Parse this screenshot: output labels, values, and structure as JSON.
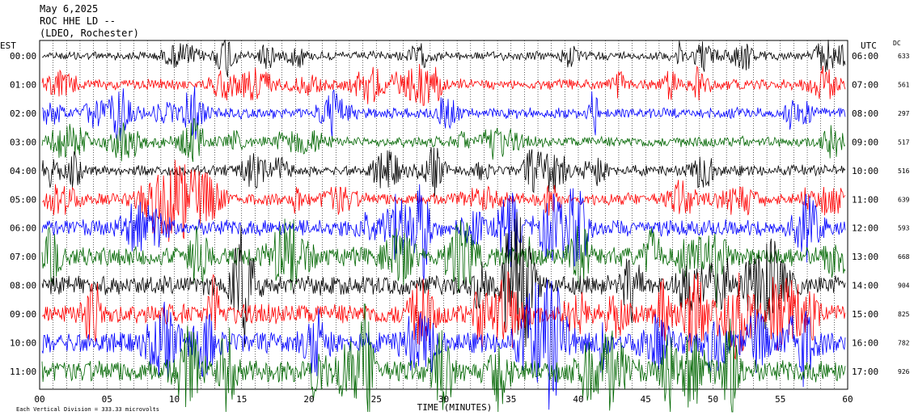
{
  "header": {
    "date": "May 6,2025",
    "station": "ROC HHE LD --",
    "location": "(LDEO, Rochester)"
  },
  "colors": {
    "trace_colors": [
      "#000000",
      "#ff0000",
      "#0000ff",
      "#006600"
    ],
    "grid": "#000000",
    "background": "#ffffff"
  },
  "chart_data": {
    "type": "line",
    "title": "",
    "xlabel": "TIME (MINUTES)",
    "left_axis_label": "EST",
    "right_axis_label": "UTC",
    "dc_label": "DC",
    "footnote": "Each Vertical Division =  333.33 microvolts",
    "xlim": [
      0,
      60
    ],
    "x_ticks": [
      "00",
      "05",
      "10",
      "15",
      "20",
      "25",
      "30",
      "35",
      "40",
      "45",
      "50",
      "55",
      "60"
    ],
    "grid": true,
    "rows": [
      {
        "est": "00:00",
        "utc": "06:00",
        "dc": "633",
        "color": "#000000",
        "noise": 0.35
      },
      {
        "est": "01:00",
        "utc": "07:00",
        "dc": "561",
        "color": "#ff0000",
        "noise": 0.45
      },
      {
        "est": "02:00",
        "utc": "08:00",
        "dc": "297",
        "color": "#0000ff",
        "noise": 0.45
      },
      {
        "est": "03:00",
        "utc": "09:00",
        "dc": "517",
        "color": "#006600",
        "noise": 0.45
      },
      {
        "est": "04:00",
        "utc": "10:00",
        "dc": "516",
        "color": "#000000",
        "noise": 0.45
      },
      {
        "est": "05:00",
        "utc": "11:00",
        "dc": "639",
        "color": "#ff0000",
        "noise": 0.55
      },
      {
        "est": "06:00",
        "utc": "12:00",
        "dc": "593",
        "color": "#0000ff",
        "noise": 0.75
      },
      {
        "est": "07:00",
        "utc": "13:00",
        "dc": "668",
        "color": "#006600",
        "noise": 0.9
      },
      {
        "est": "08:00",
        "utc": "14:00",
        "dc": "904",
        "color": "#000000",
        "noise": 0.9
      },
      {
        "est": "09:00",
        "utc": "15:00",
        "dc": "825",
        "color": "#ff0000",
        "noise": 0.95
      },
      {
        "est": "10:00",
        "utc": "16:00",
        "dc": "782",
        "color": "#0000ff",
        "noise": 1.0
      },
      {
        "est": "11:00",
        "utc": "17:00",
        "dc": "926",
        "color": "#006600",
        "noise": 1.05
      }
    ]
  }
}
